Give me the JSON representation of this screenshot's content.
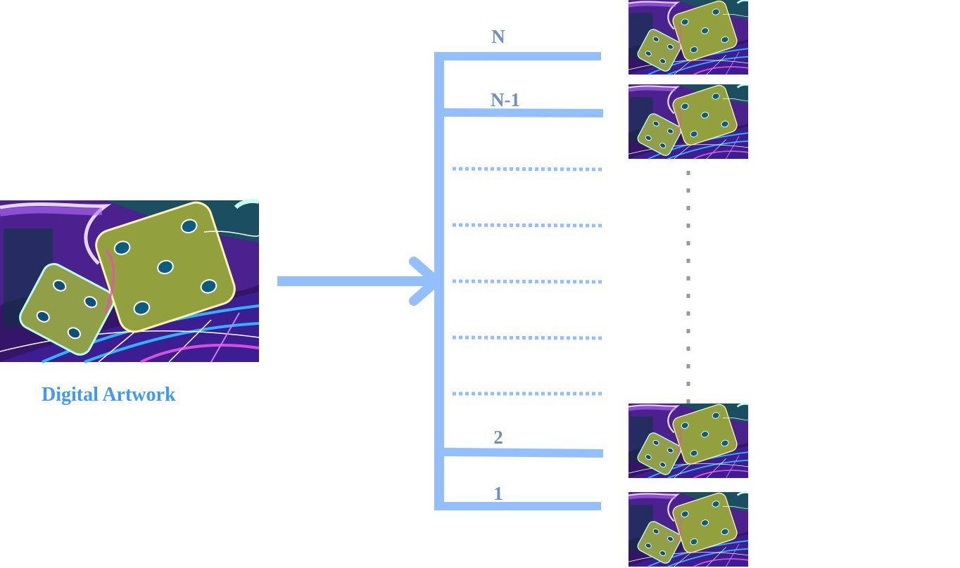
{
  "source": {
    "caption": "Digital Artwork"
  },
  "branches": {
    "labels": {
      "top": "N",
      "second": "N-1",
      "second_last": "2",
      "last": "1"
    }
  },
  "colors": {
    "accent_blue": "#93bfff",
    "label_color": "#6f8ec0",
    "caption_color": "#3d9bf4",
    "dots_gray": "#999999"
  },
  "icons": {
    "thumbnail": "neon-dice-artwork-icon"
  }
}
